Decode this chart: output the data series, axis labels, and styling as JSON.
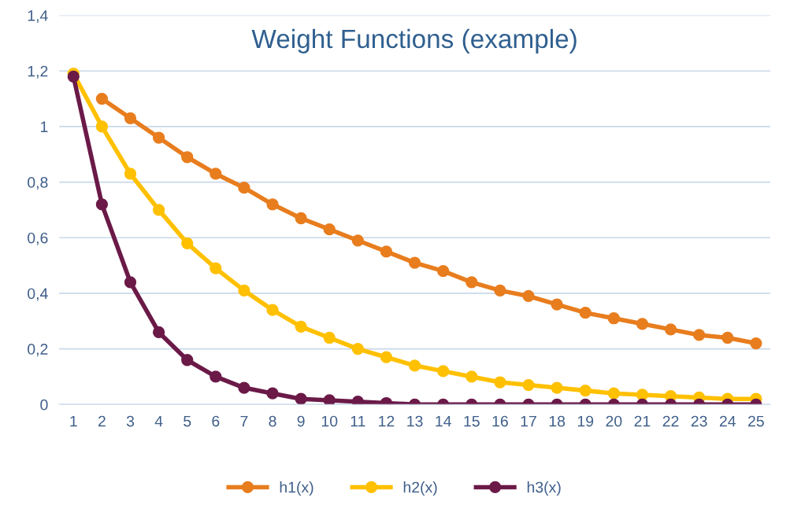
{
  "chart_data": {
    "type": "line",
    "title": "Weight Functions (example)",
    "categories": [
      "1",
      "2",
      "3",
      "4",
      "5",
      "6",
      "7",
      "8",
      "9",
      "10",
      "11",
      "12",
      "13",
      "14",
      "15",
      "16",
      "17",
      "18",
      "19",
      "20",
      "21",
      "22",
      "23",
      "24",
      "25"
    ],
    "series": [
      {
        "name": "h1(x)",
        "color": "#e87d1e",
        "values": [
          null,
          1.1,
          1.03,
          0.96,
          0.89,
          0.83,
          0.78,
          0.72,
          0.67,
          0.63,
          0.59,
          0.55,
          0.51,
          0.48,
          0.44,
          0.41,
          0.39,
          0.36,
          0.33,
          0.31,
          0.29,
          0.27,
          0.25,
          0.24,
          0.22
        ]
      },
      {
        "name": "h2(x)",
        "color": "#ffc000",
        "values": [
          1.19,
          1.0,
          0.83,
          0.7,
          0.58,
          0.49,
          0.41,
          0.34,
          0.28,
          0.24,
          0.2,
          0.17,
          0.14,
          0.12,
          0.1,
          0.08,
          0.07,
          0.06,
          0.05,
          0.04,
          0.035,
          0.03,
          0.025,
          0.02,
          0.02
        ]
      },
      {
        "name": "h3(x)",
        "color": "#6b1a48",
        "values": [
          1.18,
          0.72,
          0.44,
          0.26,
          0.16,
          0.1,
          0.06,
          0.04,
          0.02,
          0.015,
          0.01,
          0.005,
          0,
          0,
          0,
          0,
          0,
          0,
          0,
          0,
          0,
          0,
          0,
          0,
          0
        ]
      }
    ],
    "ylim": [
      0,
      1.4
    ],
    "yticks": [
      0,
      {
        "value": 0.2,
        "label": "0,2"
      },
      {
        "value": 0.4,
        "label": "0,4"
      },
      {
        "value": 0.6,
        "label": "0,6"
      },
      {
        "value": 0.8,
        "label": "0,8"
      },
      1,
      {
        "value": 1.2,
        "label": "1,2"
      },
      {
        "value": 1.4,
        "label": "1,4"
      }
    ],
    "grid": "y",
    "legend": "bottom",
    "marker": "circle",
    "line_style": "solid"
  }
}
